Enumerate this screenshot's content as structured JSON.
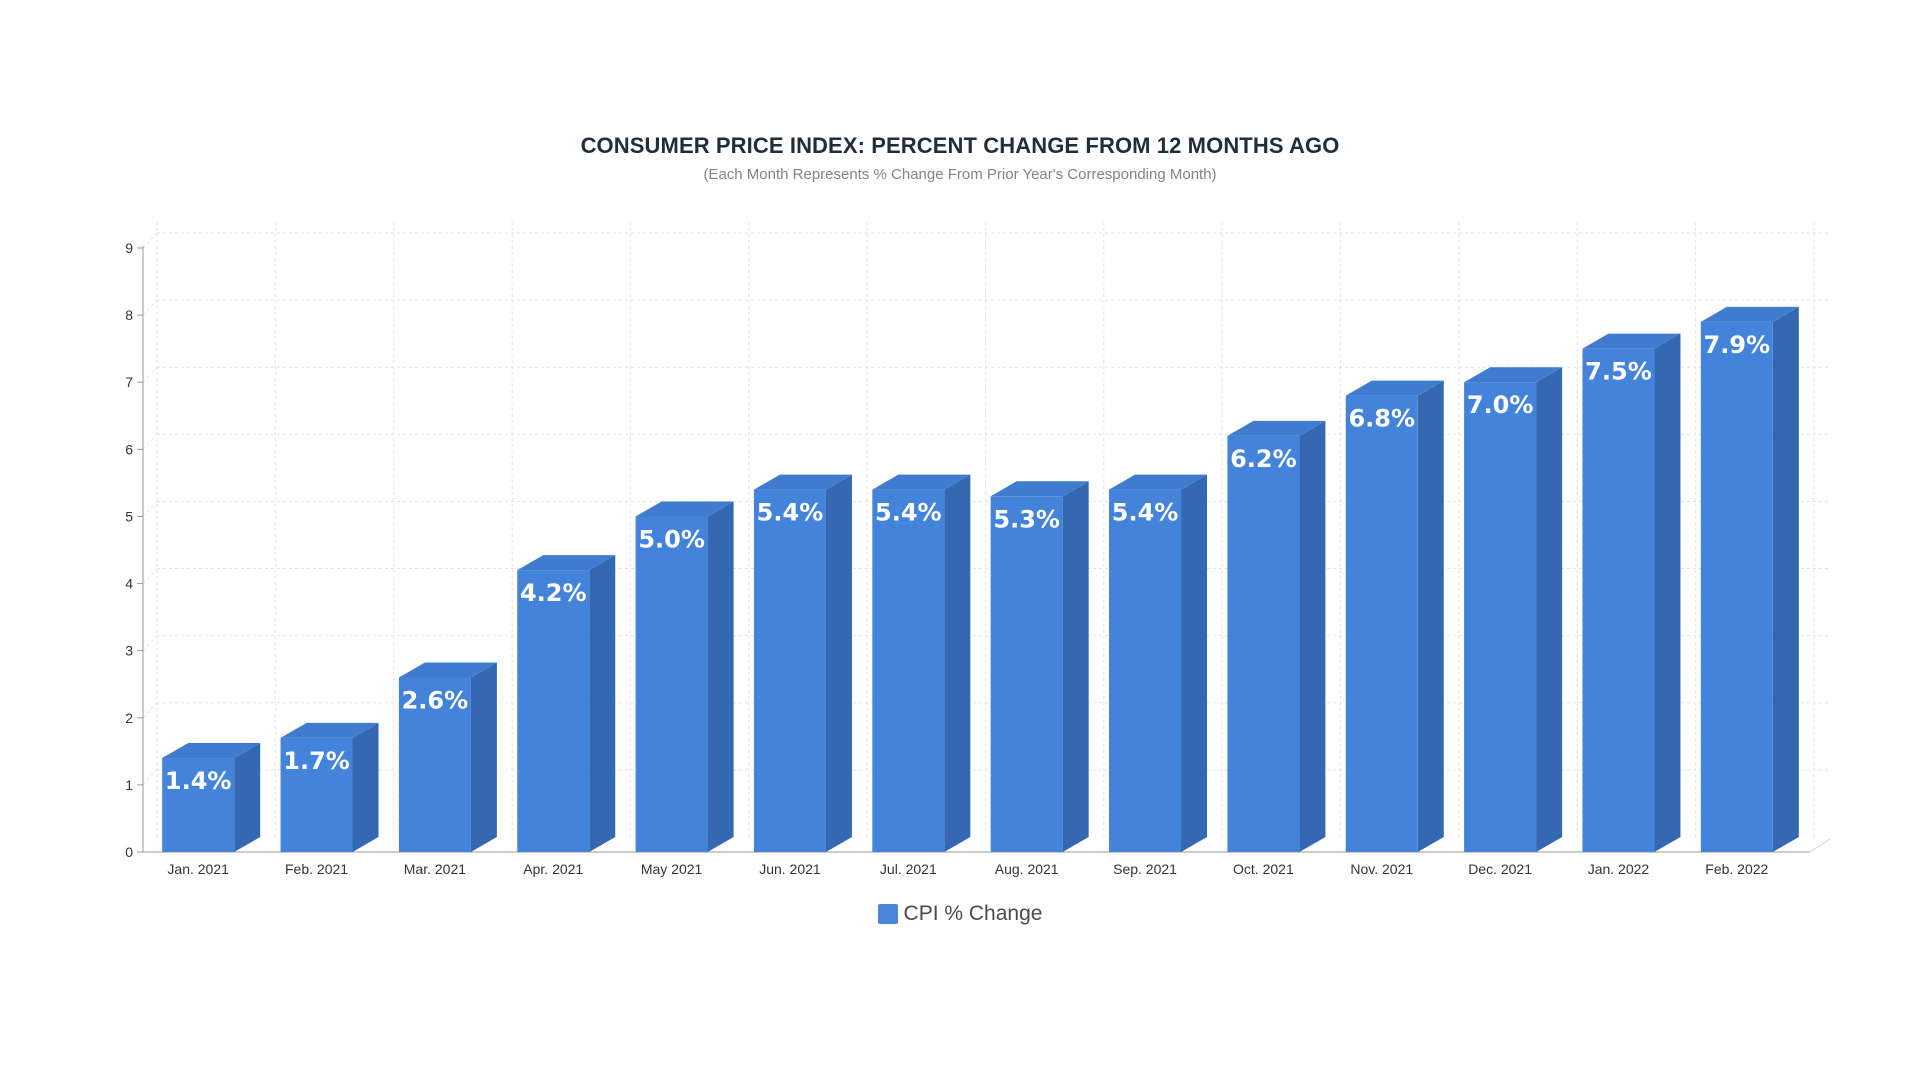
{
  "chart_data": {
    "type": "bar",
    "title": "CONSUMER PRICE INDEX: PERCENT CHANGE FROM 12 MONTHS AGO",
    "subtitle": "(Each Month Represents % Change From Prior Year's Corresponding Month)",
    "categories": [
      "Jan. 2021",
      "Feb. 2021",
      "Mar. 2021",
      "Apr. 2021",
      "May 2021",
      "Jun. 2021",
      "Jul. 2021",
      "Aug. 2021",
      "Sep. 2021",
      "Oct. 2021",
      "Nov. 2021",
      "Dec. 2021",
      "Jan. 2022",
      "Feb. 2022"
    ],
    "series": [
      {
        "name": "CPI % Change",
        "values": [
          1.4,
          1.7,
          2.6,
          4.2,
          5.0,
          5.4,
          5.4,
          5.3,
          5.4,
          6.2,
          6.8,
          7.0,
          7.5,
          7.9
        ],
        "labels": [
          "1.4%",
          "1.7%",
          "2.6%",
          "4.2%",
          "5.0%",
          "5.4%",
          "5.4%",
          "5.3%",
          "5.4%",
          "6.2%",
          "6.8%",
          "7.0%",
          "7.5%",
          "7.9%"
        ]
      }
    ],
    "yticks": [
      "0",
      "1",
      "2",
      "3",
      "4",
      "5",
      "6",
      "7",
      "8",
      "9"
    ],
    "ylim": [
      0,
      9
    ],
    "xlabel": "",
    "ylabel": "",
    "grid": true,
    "legend": "bottom-center",
    "style": "3d-bar",
    "colors": {
      "front": "#4383da",
      "side": "#3468b0",
      "top": "#3f7ccf"
    }
  }
}
